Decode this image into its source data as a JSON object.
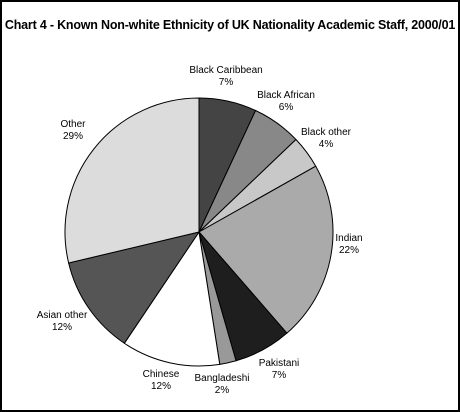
{
  "chart_data": {
    "type": "pie",
    "title": "Chart 4 - Known Non-white Ethnicity of UK Nationality Academic Staff, 2000/01",
    "slices": [
      {
        "label": "Black Caribbean",
        "value": 7,
        "display": "7%",
        "color": "#444444"
      },
      {
        "label": "Black African",
        "value": 6,
        "display": "6%",
        "color": "#888888"
      },
      {
        "label": "Black other",
        "value": 4,
        "display": "4%",
        "color": "#c8c8c8"
      },
      {
        "label": "Indian",
        "value": 22,
        "display": "22%",
        "color": "#aaaaaa"
      },
      {
        "label": "Pakistani",
        "value": 7,
        "display": "7%",
        "color": "#1e1e1e"
      },
      {
        "label": "Bangladeshi",
        "value": 2,
        "display": "2%",
        "color": "#999999"
      },
      {
        "label": "Chinese",
        "value": 12,
        "display": "12%",
        "color": "#ffffff"
      },
      {
        "label": "Asian other",
        "value": 12,
        "display": "12%",
        "color": "#555555"
      },
      {
        "label": "Other",
        "value": 29,
        "display": "29%",
        "color": "#dcdcdc"
      }
    ],
    "start": "12 o'clock",
    "direction": "clockwise",
    "legend": "none"
  }
}
